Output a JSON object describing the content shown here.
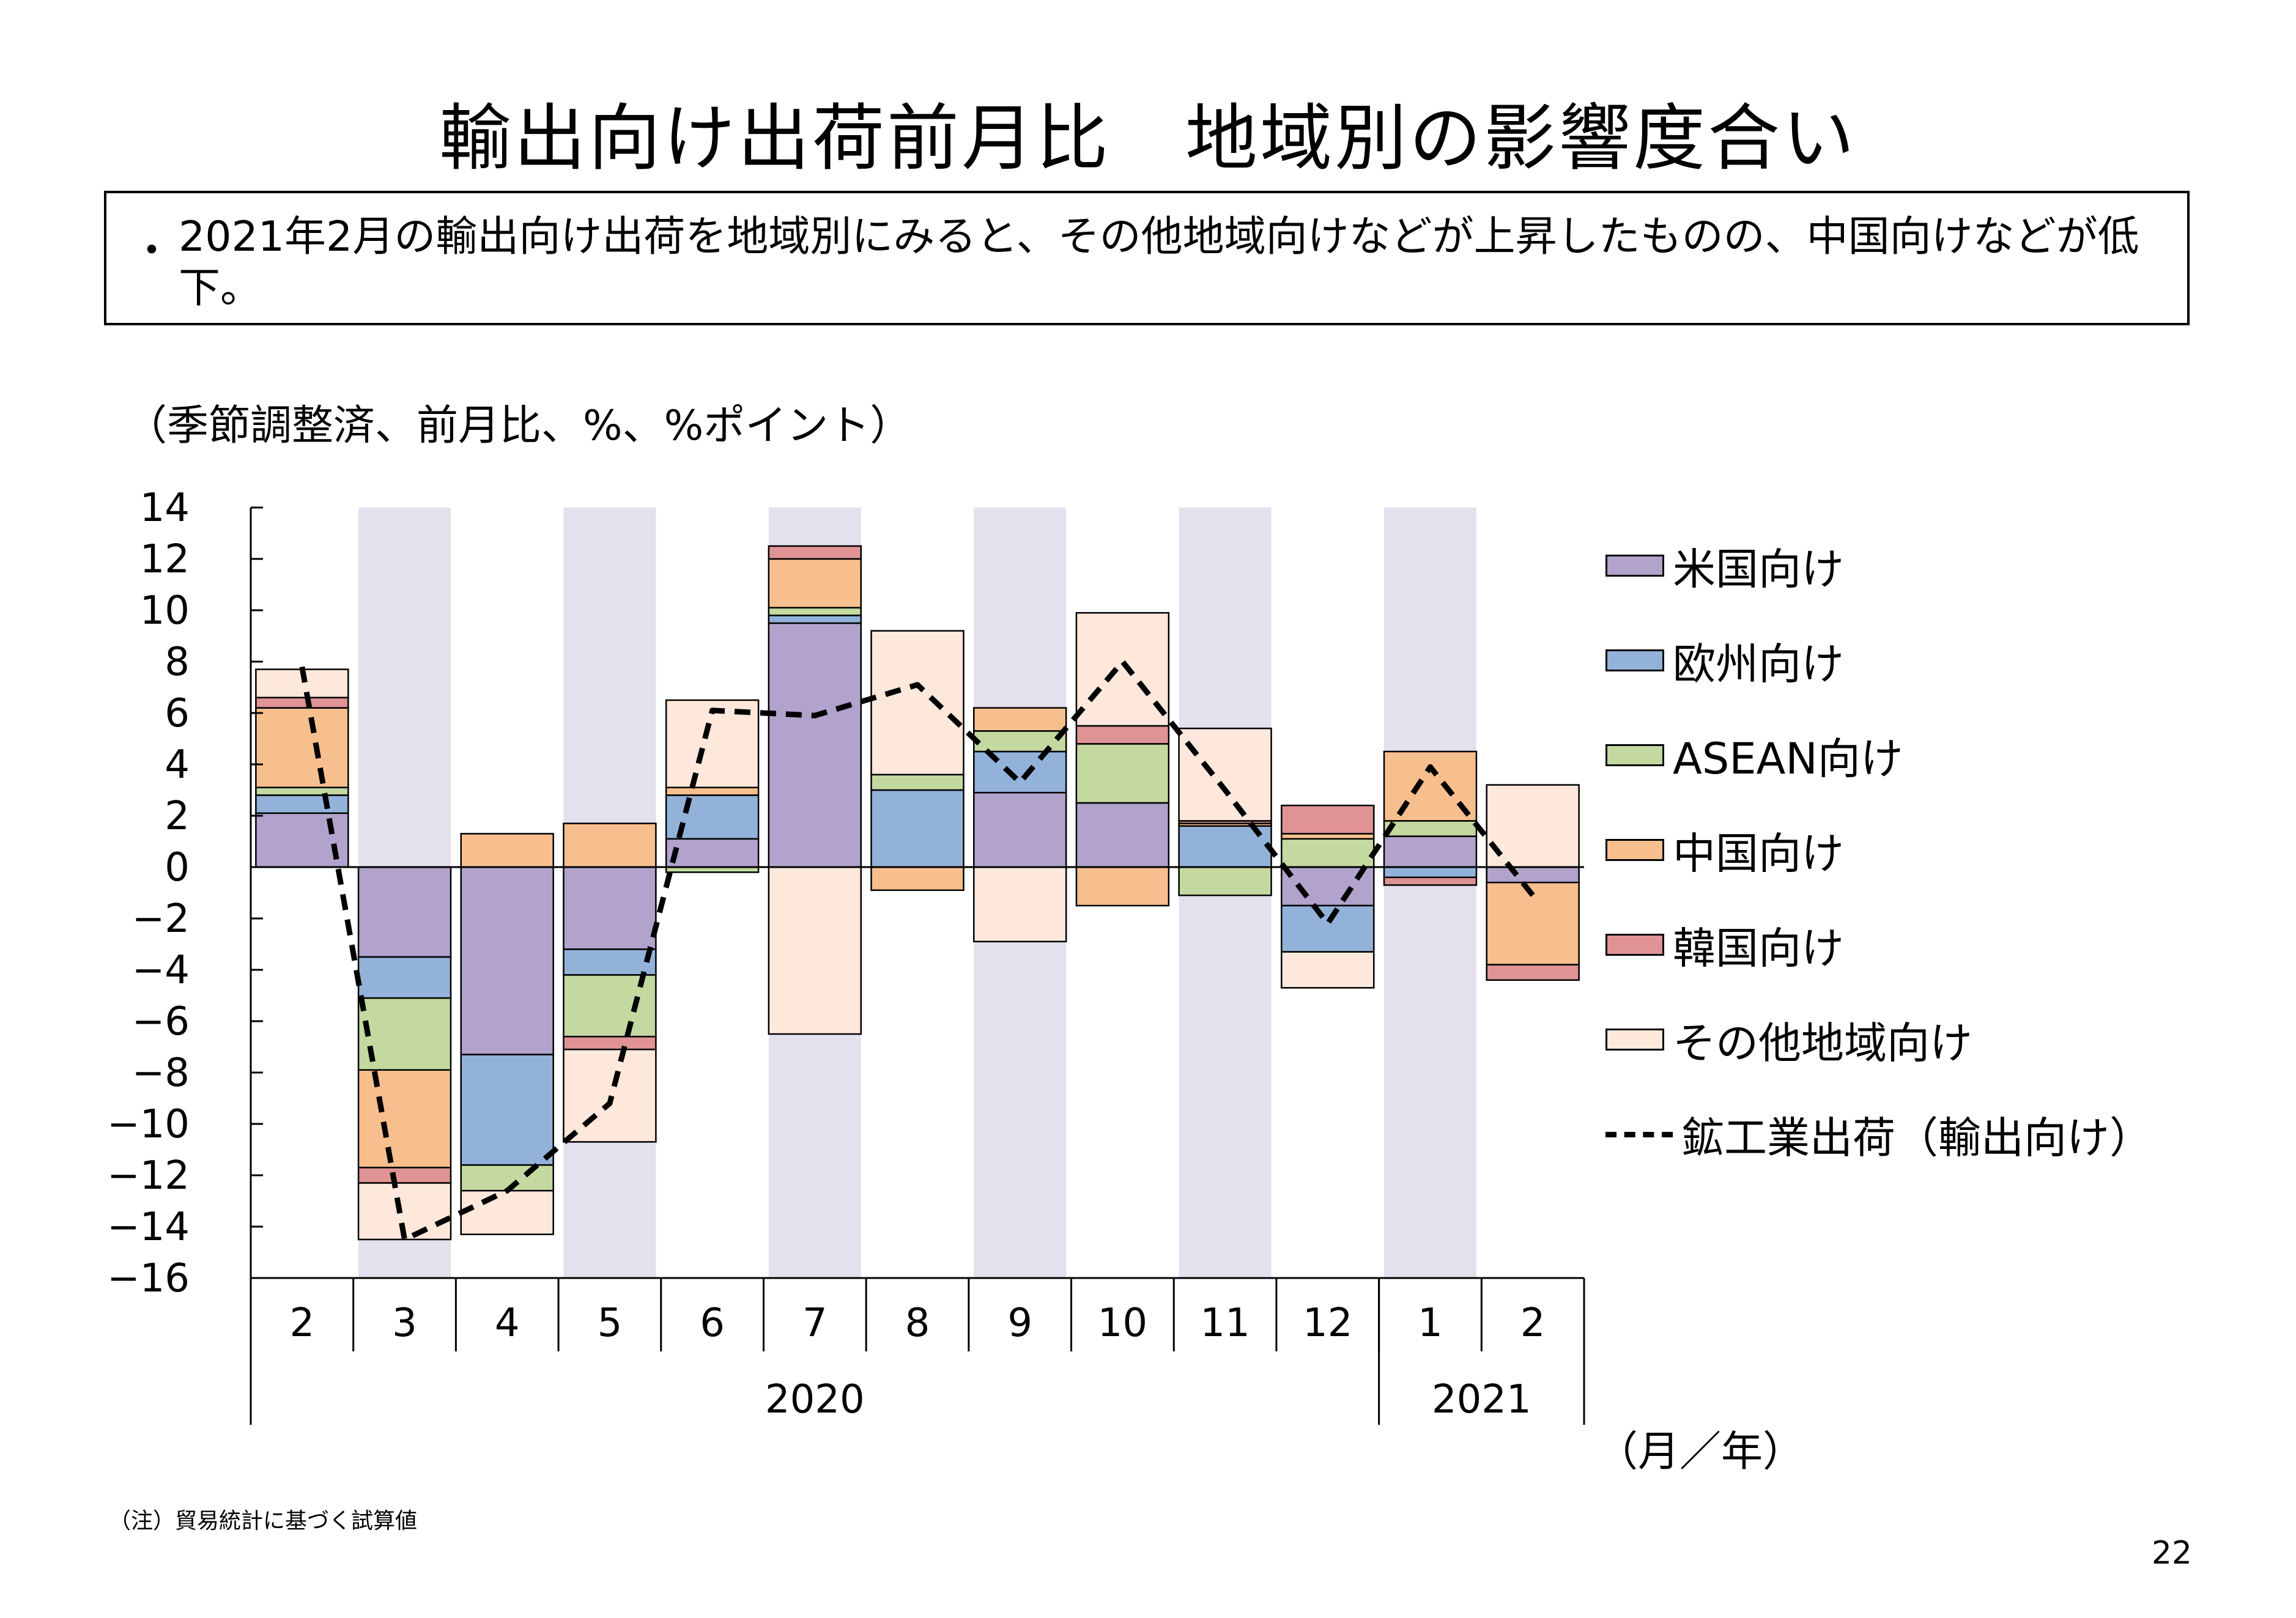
{
  "page": {
    "title": "輸出向け出荷前月比　地域別の影響度合い",
    "bullet": "・",
    "summary": "2021年2月の輸出向け出荷を地域別にみると、その他地域向けなどが上昇したものの、中国向けなどが低下。",
    "units": "（季節調整済、前月比、%、%ポイント）",
    "axis_unit": "（月／年）",
    "note": "（注）貿易統計に基づく試算値",
    "page_number": "22"
  },
  "chart_data": {
    "type": "bar",
    "stacked": true,
    "categories": [
      "2",
      "3",
      "4",
      "5",
      "6",
      "7",
      "8",
      "9",
      "10",
      "11",
      "12",
      "1",
      "2"
    ],
    "year_groups": [
      {
        "label": "2020",
        "from": 0,
        "to": 10
      },
      {
        "label": "2021",
        "from": 11,
        "to": 12
      }
    ],
    "shaded_categories": [
      1,
      3,
      5,
      7,
      9,
      11
    ],
    "ylim": [
      -16,
      14
    ],
    "ytick_step": 2,
    "legend_position": "right",
    "series": [
      {
        "name": "米国向け",
        "color": "#b1a3cb",
        "values": [
          2.1,
          -3.5,
          -7.3,
          -3.2,
          1.1,
          9.5,
          0.0,
          2.9,
          2.5,
          0.0,
          -1.5,
          1.2,
          -0.6
        ]
      },
      {
        "name": "欧州向け",
        "color": "#92b2da",
        "values": [
          0.7,
          -1.6,
          -4.3,
          -1.0,
          1.7,
          0.3,
          3.0,
          1.6,
          0.0,
          1.6,
          -1.8,
          -0.4,
          0.0
        ]
      },
      {
        "name": "ASEAN向け",
        "color": "#c3d9a0",
        "values": [
          0.3,
          -2.8,
          -1.0,
          -2.4,
          -0.2,
          0.3,
          0.6,
          0.8,
          2.3,
          -1.1,
          1.1,
          0.6,
          0.0
        ]
      },
      {
        "name": "中国向け",
        "color": "#f8bf8e",
        "values": [
          3.1,
          -3.8,
          1.3,
          1.7,
          0.3,
          1.9,
          -0.9,
          0.9,
          -1.5,
          0.1,
          0.2,
          2.7,
          -3.2
        ]
      },
      {
        "name": "韓国向け",
        "color": "#df9394",
        "values": [
          0.4,
          -0.6,
          0.0,
          -0.5,
          0.0,
          0.5,
          0.0,
          0.0,
          0.7,
          0.1,
          1.1,
          -0.3,
          -0.6
        ]
      },
      {
        "name": "その他地域向け",
        "color": "#fde8db",
        "values": [
          1.1,
          -2.2,
          -1.7,
          -3.6,
          3.4,
          -6.5,
          5.6,
          -2.9,
          4.4,
          3.6,
          -1.4,
          0.0,
          3.2
        ]
      }
    ],
    "line": {
      "name": "鉱工業出荷（輸出向け）",
      "style": "dashed",
      "values": [
        7.8,
        -14.5,
        -12.6,
        -9.2,
        6.1,
        5.9,
        7.1,
        3.3,
        8.0,
        3.0,
        -2.2,
        3.9,
        -1.1
      ]
    }
  }
}
